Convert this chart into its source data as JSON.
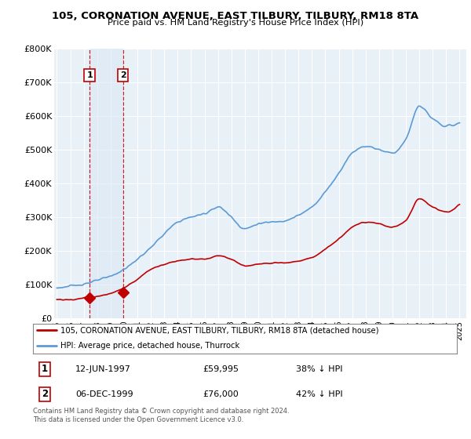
{
  "title": "105, CORONATION AVENUE, EAST TILBURY, TILBURY, RM18 8TA",
  "subtitle": "Price paid vs. HM Land Registry's House Price Index (HPI)",
  "legend_line1": "105, CORONATION AVENUE, EAST TILBURY, TILBURY, RM18 8TA (detached house)",
  "legend_line2": "HPI: Average price, detached house, Thurrock",
  "annotation1_date": "12-JUN-1997",
  "annotation1_price": "£59,995",
  "annotation1_hpi": "38% ↓ HPI",
  "annotation2_date": "06-DEC-1999",
  "annotation2_price": "£76,000",
  "annotation2_hpi": "42% ↓ HPI",
  "footnote": "Contains HM Land Registry data © Crown copyright and database right 2024.\nThis data is licensed under the Open Government Licence v3.0.",
  "sale1_x": 1997.44,
  "sale1_y": 59995,
  "sale2_x": 1999.92,
  "sale2_y": 76000,
  "hpi_color": "#5b9bd5",
  "price_color": "#c00000",
  "vline_color": "#c00000",
  "highlight_color": "#dae8f5",
  "bg_color": "#e8f0f8",
  "grid_color": "white",
  "ylim": [
    0,
    800000
  ],
  "xlim_start": 1994.8,
  "xlim_end": 2025.5,
  "hpi_knots_x": [
    1995,
    1996,
    1997,
    1998,
    1999,
    2000,
    2001,
    2002,
    2003,
    2004,
    2005,
    2006,
    2007,
    2008,
    2009,
    2010,
    2011,
    2012,
    2013,
    2014,
    2015,
    2016,
    2017,
    2018,
    2019,
    2020,
    2021,
    2022,
    2023,
    2024,
    2025
  ],
  "hpi_knots_y": [
    90000,
    95000,
    102000,
    112000,
    125000,
    145000,
    175000,
    210000,
    250000,
    285000,
    300000,
    310000,
    330000,
    300000,
    265000,
    280000,
    285000,
    290000,
    305000,
    330000,
    375000,
    430000,
    490000,
    510000,
    500000,
    490000,
    530000,
    630000,
    590000,
    570000,
    580000
  ],
  "price_knots_x": [
    1995,
    1996,
    1997,
    1998,
    1999,
    2000,
    2001,
    2002,
    2003,
    2004,
    2005,
    2006,
    2007,
    2008,
    2009,
    2010,
    2011,
    2012,
    2013,
    2014,
    2015,
    2016,
    2017,
    2018,
    2019,
    2020,
    2021,
    2022,
    2023,
    2024,
    2025
  ],
  "price_knots_y": [
    55000,
    55000,
    60000,
    65000,
    73000,
    90000,
    115000,
    145000,
    160000,
    170000,
    175000,
    175000,
    185000,
    175000,
    155000,
    160000,
    165000,
    165000,
    170000,
    180000,
    205000,
    235000,
    270000,
    285000,
    280000,
    270000,
    290000,
    355000,
    330000,
    315000,
    340000
  ]
}
